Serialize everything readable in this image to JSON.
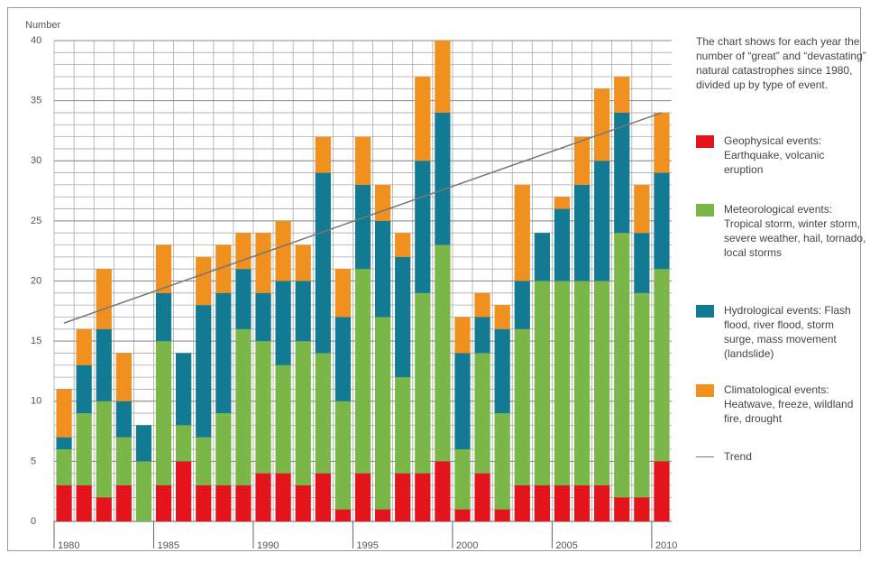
{
  "chart_data": {
    "type": "stacked_bar",
    "y_label": "Number",
    "note": "The chart shows for each year the number of “great” and “devastating” natural catastrophes since 1980, divided up by type of event.",
    "x": [
      1980,
      1981,
      1982,
      1983,
      1984,
      1985,
      1986,
      1987,
      1988,
      1989,
      1990,
      1991,
      1992,
      1993,
      1994,
      1995,
      1996,
      1997,
      1998,
      1999,
      2000,
      2001,
      2002,
      2003,
      2004,
      2005,
      2006,
      2007,
      2008,
      2009,
      2010
    ],
    "xlim": [
      1979.5,
      2010.5
    ],
    "xticks": [
      1980,
      1985,
      1990,
      1995,
      2000,
      2005,
      2010
    ],
    "ylim": [
      0,
      40
    ],
    "yticks": [
      0,
      5,
      10,
      15,
      20,
      25,
      30,
      35,
      40
    ],
    "grid": true,
    "series": [
      {
        "name": "Geophysical events: Earthquake, volcanic eruption",
        "color": "#e3141c",
        "values": [
          3,
          3,
          2,
          3,
          0,
          3,
          5,
          3,
          3,
          3,
          4,
          4,
          3,
          4,
          1,
          4,
          1,
          4,
          4,
          5,
          1,
          4,
          1,
          3,
          3,
          3,
          3,
          3,
          2,
          2,
          5
        ]
      },
      {
        "name": "Meteorological events: Tropical storm, winter storm, severe weather, hail, tornado, local storms",
        "color": "#7ab648",
        "values": [
          3,
          6,
          8,
          4,
          5,
          12,
          3,
          4,
          6,
          13,
          11,
          9,
          12,
          10,
          9,
          17,
          16,
          8,
          15,
          18,
          5,
          10,
          8,
          13,
          17,
          17,
          17,
          17,
          22,
          17,
          16
        ]
      },
      {
        "name": "Hydrological events: Flash flood, river flood, storm surge, mass movement (landslide)",
        "color": "#137a93",
        "values": [
          1,
          4,
          6,
          3,
          3,
          4,
          6,
          11,
          10,
          5,
          4,
          7,
          5,
          15,
          7,
          7,
          8,
          10,
          11,
          11,
          8,
          3,
          7,
          4,
          4,
          6,
          8,
          10,
          10,
          5,
          8
        ]
      },
      {
        "name": "Climatological events: Heatwave, freeze, wildland fire, drought",
        "color": "#f0901e",
        "values": [
          4,
          3,
          5,
          4,
          0,
          4,
          0,
          4,
          4,
          3,
          5,
          5,
          3,
          3,
          4,
          4,
          3,
          2,
          7,
          6,
          3,
          2,
          2,
          8,
          0,
          1,
          4,
          6,
          3,
          4,
          5
        ]
      }
    ],
    "trend": {
      "name": "Trend",
      "color": "#777777",
      "x": [
        1980,
        2010
      ],
      "values": [
        16.5,
        34
      ]
    }
  }
}
